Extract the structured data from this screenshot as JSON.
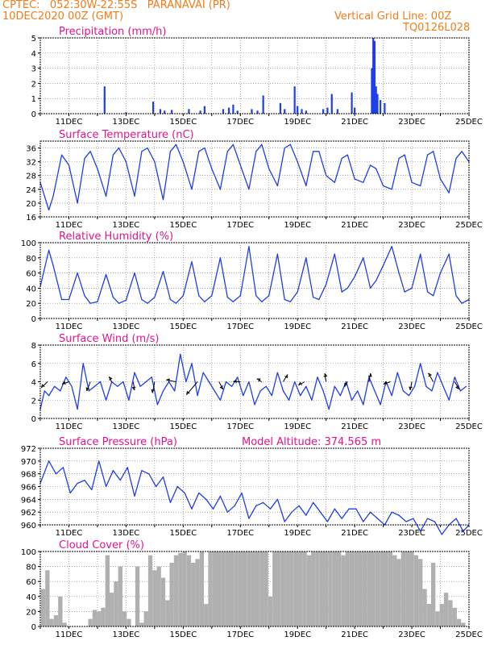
{
  "header": {
    "line1_left": "CPTEC:   052:30W-22:55S   PARANAVAI (PR)",
    "line2_left": "10DEC2020 00Z (GMT)",
    "line2_right": "Vertical Grid Line: 00Z",
    "line3_right": "TQ0126L028"
  },
  "colors": {
    "header": "#f07c1a",
    "panel_title": "#e0148c",
    "series": "#1f3ee6",
    "cloud": "#b0b0b0",
    "grid": "#777777"
  },
  "x_axis": {
    "tick_labels": [
      "11DEC",
      "13DEC",
      "15DEC",
      "17DEC",
      "19DEC",
      "21DEC",
      "23DEC",
      "25DEC"
    ],
    "tick_days": [
      11,
      13,
      15,
      17,
      19,
      21,
      23,
      25
    ],
    "range_days": [
      10,
      25
    ],
    "grid": "vertical line at 00Z of each day"
  },
  "chart_data": [
    {
      "type": "bar",
      "title": "Precipitation (mm/h)",
      "ylim": [
        0,
        5
      ],
      "yticks": [
        "0",
        "1",
        "2",
        "3",
        "4",
        "5"
      ],
      "x_days": [
        12.25,
        13.0,
        13.95,
        14.2,
        14.35,
        14.6,
        15.2,
        15.6,
        15.75,
        16.4,
        16.6,
        16.75,
        16.9,
        17.4,
        17.6,
        17.8,
        18.4,
        18.55,
        18.9,
        19.0,
        19.15,
        19.3,
        19.9,
        20.05,
        20.2,
        20.4,
        20.9,
        21.0,
        21.6,
        21.65,
        21.7,
        21.75,
        21.8,
        21.9,
        22.05
      ],
      "values": [
        1.8,
        0.1,
        0.8,
        0.3,
        0.2,
        0.25,
        0.3,
        0.2,
        0.5,
        0.3,
        0.4,
        0.6,
        0.2,
        0.3,
        0.2,
        1.2,
        0.7,
        0.3,
        1.8,
        0.5,
        0.3,
        0.2,
        0.3,
        0.4,
        1.3,
        0.3,
        1.4,
        0.4,
        3.0,
        5.0,
        4.8,
        1.8,
        1.3,
        0.9,
        0.7
      ]
    },
    {
      "type": "line",
      "title": "Surface Temperature (nC)",
      "ylim": [
        16,
        38
      ],
      "yticks": [
        "16",
        "20",
        "24",
        "28",
        "32",
        "36"
      ],
      "x_days": [
        10.0,
        10.3,
        10.45,
        10.75,
        11.0,
        11.3,
        11.55,
        11.75,
        12.0,
        12.3,
        12.55,
        12.75,
        13.0,
        13.3,
        13.55,
        13.75,
        14.0,
        14.3,
        14.55,
        14.75,
        15.0,
        15.3,
        15.55,
        15.75,
        16.0,
        16.3,
        16.55,
        16.75,
        17.0,
        17.3,
        17.55,
        17.75,
        18.0,
        18.3,
        18.55,
        18.75,
        19.0,
        19.3,
        19.55,
        19.75,
        20.0,
        20.3,
        20.55,
        20.75,
        21.0,
        21.3,
        21.55,
        21.75,
        22.0,
        22.3,
        22.55,
        22.75,
        23.0,
        23.3,
        23.55,
        23.75,
        24.0,
        24.3,
        24.55,
        24.75,
        25.0
      ],
      "values": [
        26,
        18,
        22,
        34,
        31,
        20,
        33,
        35,
        30,
        22,
        34,
        36,
        32,
        22,
        35,
        36,
        32,
        21,
        35,
        37,
        32,
        24,
        35,
        36,
        30,
        24,
        35,
        37,
        31,
        24,
        35,
        37,
        30,
        25,
        36,
        37,
        32,
        25,
        35,
        35,
        28,
        26,
        33,
        34,
        27,
        26,
        31,
        30,
        25,
        24,
        33,
        34,
        26,
        25,
        34,
        35,
        27,
        23,
        33,
        35,
        32
      ]
    },
    {
      "type": "line",
      "title": "Relative Humidity (%)",
      "ylim": [
        0,
        100
      ],
      "yticks": [
        "0",
        "20",
        "40",
        "60",
        "80",
        "100"
      ],
      "x_days": [
        10.0,
        10.3,
        10.45,
        10.75,
        11.0,
        11.3,
        11.55,
        11.75,
        12.0,
        12.3,
        12.55,
        12.75,
        13.0,
        13.3,
        13.55,
        13.75,
        14.0,
        14.3,
        14.55,
        14.75,
        15.0,
        15.3,
        15.55,
        15.75,
        16.0,
        16.3,
        16.55,
        16.75,
        17.0,
        17.3,
        17.55,
        17.75,
        18.0,
        18.3,
        18.55,
        18.75,
        19.0,
        19.3,
        19.55,
        19.75,
        20.0,
        20.3,
        20.55,
        20.75,
        21.0,
        21.3,
        21.55,
        21.75,
        22.0,
        22.3,
        22.55,
        22.75,
        23.0,
        23.3,
        23.55,
        23.75,
        24.0,
        24.3,
        24.55,
        24.75,
        25.0
      ],
      "values": [
        42,
        90,
        70,
        25,
        25,
        60,
        30,
        20,
        22,
        58,
        28,
        20,
        24,
        60,
        25,
        20,
        28,
        62,
        25,
        20,
        30,
        75,
        30,
        22,
        30,
        80,
        28,
        22,
        30,
        95,
        30,
        22,
        30,
        85,
        25,
        22,
        35,
        80,
        28,
        25,
        45,
        85,
        35,
        40,
        55,
        80,
        40,
        50,
        70,
        95,
        60,
        35,
        40,
        85,
        35,
        30,
        60,
        85,
        30,
        20,
        25
      ]
    },
    {
      "type": "line",
      "title": "Surface Wind (m/s)",
      "ylim": [
        0,
        8
      ],
      "yticks": [
        "0",
        "2",
        "4",
        "6",
        "8"
      ],
      "x_days": [
        10.0,
        10.15,
        10.3,
        10.5,
        10.7,
        10.9,
        11.1,
        11.3,
        11.5,
        11.7,
        11.9,
        12.1,
        12.3,
        12.5,
        12.7,
        12.9,
        13.1,
        13.3,
        13.5,
        13.7,
        13.9,
        14.1,
        14.3,
        14.5,
        14.7,
        14.9,
        15.1,
        15.3,
        15.5,
        15.7,
        15.9,
        16.1,
        16.3,
        16.5,
        16.7,
        16.9,
        17.1,
        17.3,
        17.5,
        17.7,
        17.9,
        18.1,
        18.3,
        18.5,
        18.7,
        18.9,
        19.1,
        19.3,
        19.5,
        19.7,
        19.9,
        20.1,
        20.3,
        20.5,
        20.7,
        20.9,
        21.1,
        21.3,
        21.5,
        21.7,
        21.9,
        22.1,
        22.3,
        22.5,
        22.7,
        22.9,
        23.1,
        23.3,
        23.5,
        23.7,
        23.9,
        24.1,
        24.3,
        24.5,
        24.7,
        24.9
      ],
      "values": [
        1.0,
        3.0,
        2.5,
        3.5,
        3.0,
        4.5,
        3.5,
        1.0,
        6.0,
        3.0,
        3.5,
        4.0,
        2.0,
        4.0,
        3.5,
        4.0,
        2.0,
        5.0,
        3.5,
        4.0,
        4.5,
        1.5,
        3.0,
        4.0,
        3.0,
        7.0,
        4.0,
        6.0,
        2.5,
        5.0,
        4.0,
        3.0,
        2.0,
        4.0,
        3.5,
        4.5,
        2.5,
        4.0,
        1.5,
        3.0,
        3.5,
        2.5,
        5.0,
        3.0,
        2.0,
        4.0,
        2.5,
        3.5,
        2.0,
        4.5,
        3.0,
        1.0,
        3.5,
        2.5,
        4.0,
        2.0,
        3.0,
        1.5,
        4.5,
        3.0,
        1.5,
        4.0,
        2.5,
        5.0,
        3.0,
        2.5,
        3.5,
        6.0,
        3.5,
        3.0,
        5.0,
        3.5,
        2.0,
        4.5,
        3.0,
        3.5
      ],
      "vectors": {
        "x_days": [
          10.25,
          11.0,
          11.75,
          12.5,
          13.25,
          14.0,
          14.75,
          15.5,
          16.25,
          17.0,
          17.75,
          18.5,
          19.25,
          20.0,
          20.75,
          21.5,
          22.25,
          23.0,
          23.75,
          24.5
        ],
        "speed": [
          3.0,
          2.5,
          3.5,
          2.0,
          3.0,
          4.0,
          3.5,
          6.0,
          3.0,
          2.5,
          2.0,
          3.0,
          2.5,
          3.0,
          2.0,
          3.0,
          2.5,
          3.0,
          3.5,
          3.0
        ],
        "dir_to_deg": [
          225,
          200,
          250,
          120,
          280,
          260,
          170,
          230,
          300,
          180,
          150,
          60,
          210,
          100,
          240,
          80,
          200,
          260,
          120,
          300
        ]
      }
    },
    {
      "type": "line",
      "title": "Surface Pressure (hPa)",
      "annotation": "Model Altitude: 374.565 m",
      "ylim": [
        960,
        972
      ],
      "yticks": [
        "960",
        "962",
        "964",
        "966",
        "968",
        "970",
        "972"
      ],
      "x_days": [
        10.0,
        10.3,
        10.55,
        10.8,
        11.05,
        11.3,
        11.55,
        11.8,
        12.05,
        12.3,
        12.55,
        12.8,
        13.05,
        13.3,
        13.55,
        13.8,
        14.05,
        14.3,
        14.55,
        14.8,
        15.05,
        15.3,
        15.55,
        15.8,
        16.05,
        16.3,
        16.55,
        16.8,
        17.05,
        17.3,
        17.55,
        17.8,
        18.05,
        18.3,
        18.55,
        18.8,
        19.05,
        19.3,
        19.55,
        19.8,
        20.05,
        20.3,
        20.55,
        20.8,
        21.05,
        21.3,
        21.55,
        21.8,
        22.05,
        22.3,
        22.55,
        22.8,
        23.05,
        23.3,
        23.55,
        23.8,
        24.05,
        24.3,
        24.55,
        24.8,
        25.0
      ],
      "values": [
        966.5,
        970.0,
        968.0,
        969.0,
        965.0,
        966.5,
        967.0,
        965.5,
        970.0,
        966.0,
        968.5,
        967.0,
        969.0,
        964.5,
        968.5,
        968.0,
        966.0,
        967.5,
        963.5,
        966.0,
        965.0,
        962.5,
        965.0,
        964.0,
        962.5,
        964.5,
        962.0,
        963.0,
        965.0,
        961.0,
        963.0,
        963.5,
        962.5,
        964.0,
        960.5,
        962.0,
        963.0,
        961.5,
        963.5,
        962.0,
        960.5,
        962.5,
        961.0,
        962.5,
        962.5,
        960.5,
        962.0,
        961.0,
        960.0,
        962.0,
        961.5,
        960.5,
        961.0,
        959.0,
        961.0,
        960.5,
        958.5,
        960.0,
        961.0,
        959.0,
        960.0
      ]
    },
    {
      "type": "bar",
      "title": "Cloud Cover (%)",
      "ylim": [
        0,
        100
      ],
      "yticks": [
        "0",
        "20",
        "40",
        "60",
        "80",
        "100"
      ],
      "x_days": [
        10.1,
        10.25,
        10.4,
        10.55,
        10.7,
        10.85,
        11.0,
        11.15,
        11.3,
        11.45,
        11.6,
        11.75,
        11.9,
        12.05,
        12.2,
        12.35,
        12.5,
        12.65,
        12.8,
        12.95,
        13.1,
        13.25,
        13.4,
        13.55,
        13.7,
        13.85,
        14.0,
        14.15,
        14.3,
        14.45,
        14.6,
        14.75,
        14.9,
        15.05,
        15.2,
        15.35,
        15.5,
        15.65,
        15.8,
        15.95,
        16.1,
        16.25,
        16.4,
        16.55,
        16.7,
        16.85,
        17.0,
        17.15,
        17.3,
        17.45,
        17.6,
        17.75,
        17.9,
        18.05,
        18.2,
        18.35,
        18.5,
        18.65,
        18.8,
        18.95,
        19.1,
        19.25,
        19.4,
        19.55,
        19.7,
        19.85,
        20.0,
        20.15,
        20.3,
        20.45,
        20.6,
        20.75,
        20.9,
        21.05,
        21.2,
        21.35,
        21.5,
        21.65,
        21.8,
        21.95,
        22.1,
        22.25,
        22.4,
        22.55,
        22.7,
        22.85,
        23.0,
        23.15,
        23.3,
        23.45,
        23.6,
        23.75,
        23.9,
        24.05,
        24.2,
        24.35,
        24.5,
        24.65,
        24.8,
        24.95
      ],
      "values": [
        50,
        75,
        10,
        15,
        40,
        5,
        0,
        0,
        0,
        0,
        0,
        10,
        22,
        20,
        25,
        95,
        45,
        60,
        80,
        20,
        10,
        0,
        80,
        5,
        20,
        95,
        75,
        80,
        65,
        35,
        85,
        95,
        98,
        100,
        95,
        85,
        90,
        100,
        30,
        100,
        100,
        100,
        100,
        100,
        100,
        100,
        100,
        100,
        100,
        100,
        100,
        100,
        100,
        40,
        100,
        100,
        100,
        100,
        100,
        100,
        100,
        100,
        95,
        100,
        100,
        100,
        100,
        100,
        100,
        100,
        95,
        100,
        100,
        100,
        100,
        100,
        100,
        100,
        100,
        100,
        100,
        100,
        95,
        90,
        100,
        100,
        100,
        95,
        90,
        50,
        30,
        85,
        20,
        30,
        45,
        35,
        25,
        10,
        5,
        0
      ]
    }
  ]
}
